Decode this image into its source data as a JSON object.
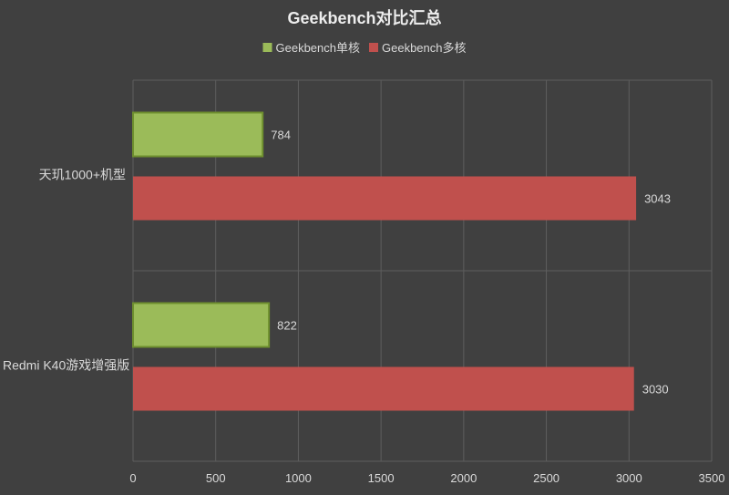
{
  "chart_data": {
    "type": "bar",
    "orientation": "horizontal",
    "title": "Geekbench对比汇总",
    "categories": [
      "天玑1000+机型",
      "Redmi K40游戏增强版"
    ],
    "series": [
      {
        "name": "Geekbench单核",
        "values": [
          784,
          822
        ],
        "color": "#9BBB59"
      },
      {
        "name": "Geekbench多核",
        "values": [
          3043,
          3030
        ],
        "color": "#C0504D"
      }
    ],
    "xlim": [
      0,
      3500
    ],
    "xticks": [
      0,
      500,
      1000,
      1500,
      2000,
      2500,
      3000,
      3500
    ],
    "grid": true,
    "legend_position": "top"
  },
  "colors": {
    "background": "#404040",
    "grid": "#5E5E5E",
    "text": "#D9D9D9",
    "title": "#EDEDED"
  }
}
